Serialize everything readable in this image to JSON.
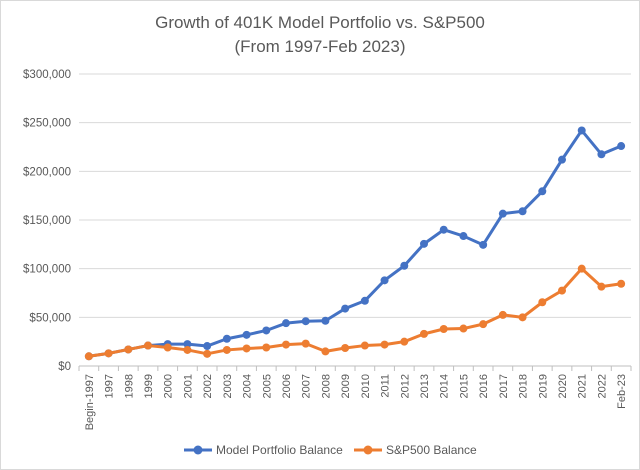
{
  "chart_data": {
    "type": "line",
    "title": [
      "Growth of 401K Model Portfolio vs. S&P500",
      "(From 1997-Feb 2023)"
    ],
    "categories": [
      "Begin-1997",
      "1997",
      "1998",
      "1999",
      "2000",
      "2001",
      "2002",
      "2003",
      "2004",
      "2005",
      "2006",
      "2007",
      "2008",
      "2009",
      "2010",
      "2011",
      "2012",
      "2013",
      "2014",
      "2015",
      "2016",
      "2017",
      "2018",
      "2019",
      "2020",
      "2021",
      "2022",
      "Feb-23"
    ],
    "ylim": [
      0,
      300000
    ],
    "yticks": [
      0,
      50000,
      100000,
      150000,
      200000,
      250000,
      300000
    ],
    "ytick_labels": [
      "$0",
      "$50,000",
      "$100,000",
      "$150,000",
      "$200,000",
      "$250,000",
      "$300,000"
    ],
    "grid": true,
    "legend_position": "bottom",
    "series": [
      {
        "name": "Model Portfolio Balance",
        "color": "#4472c4",
        "values": [
          10000,
          13000,
          17000,
          21000,
          22500,
          22500,
          20500,
          28000,
          32000,
          36500,
          44000,
          46000,
          46500,
          59000,
          67000,
          88000,
          103000,
          125500,
          140000,
          133500,
          124500,
          156500,
          159000,
          179500,
          212000,
          242000,
          217500,
          226000
        ]
      },
      {
        "name": "S&P500 Balance",
        "color": "#ed7d31",
        "values": [
          10000,
          13000,
          17000,
          21000,
          19000,
          16500,
          12500,
          16500,
          18000,
          19000,
          22000,
          23000,
          15000,
          18500,
          21000,
          22000,
          25000,
          33000,
          38000,
          38500,
          43000,
          52500,
          50000,
          65500,
          77500,
          100000,
          81500,
          84500
        ]
      }
    ]
  }
}
